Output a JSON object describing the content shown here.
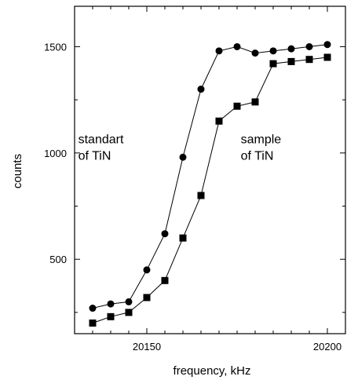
{
  "chart_data": {
    "type": "line",
    "title": "",
    "xlabel": "frequency, kHz",
    "ylabel": "counts",
    "xlim": [
      20130,
      20205
    ],
    "ylim": [
      150,
      1690
    ],
    "xticks": [
      20150,
      20200
    ],
    "yticks": [
      500,
      1000,
      1500
    ],
    "grid": false,
    "series": [
      {
        "marker": "circle",
        "color": "#000000",
        "x": [
          20135,
          20140,
          20145,
          20150,
          20155,
          20160,
          20165,
          20170,
          20175,
          20180,
          20185,
          20190,
          20195,
          20200
        ],
        "y": [
          270,
          290,
          300,
          450,
          620,
          980,
          1300,
          1480,
          1500,
          1470,
          1480,
          1490,
          1500,
          1510
        ]
      },
      {
        "marker": "square",
        "color": "#000000",
        "x": [
          20135,
          20140,
          20145,
          20150,
          20155,
          20160,
          20165,
          20170,
          20175,
          20180,
          20185,
          20190,
          20195,
          20200
        ],
        "y": [
          200,
          230,
          250,
          320,
          400,
          600,
          800,
          1150,
          1220,
          1240,
          1420,
          1430,
          1440,
          1450
        ]
      }
    ],
    "annotations": [
      {
        "lines": [
          "standart",
          "of TiN"
        ],
        "x": 20131,
        "y": 1045
      },
      {
        "lines": [
          "sample",
          "of TiN"
        ],
        "x": 20176,
        "y": 1045
      }
    ]
  }
}
